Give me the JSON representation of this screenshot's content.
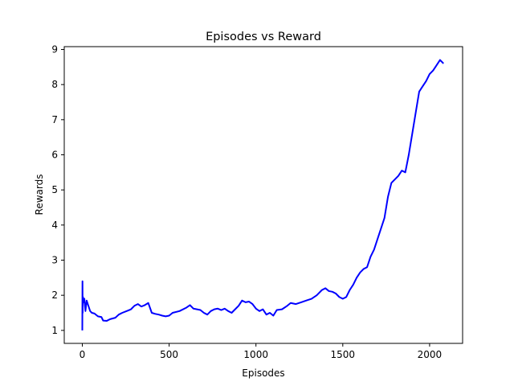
{
  "chart_data": {
    "type": "line",
    "title": "Episodes vs Reward",
    "xlabel": "Episodes",
    "ylabel": "Rewards",
    "xlim": [
      -104,
      2190
    ],
    "ylim": [
      0.63,
      9.08
    ],
    "xticks": [
      0,
      500,
      1000,
      1500,
      2000
    ],
    "xtick_labels": [
      "0",
      "500",
      "1000",
      "1500",
      "2000"
    ],
    "yticks": [
      1,
      2,
      3,
      4,
      5,
      6,
      7,
      8,
      9
    ],
    "ytick_labels": [
      "1",
      "2",
      "3",
      "4",
      "5",
      "6",
      "7",
      "8",
      "9"
    ],
    "grid": false,
    "legend": "none",
    "series": [
      {
        "color": "#0000ff",
        "points": [
          [
            0,
            1.0
          ],
          [
            1,
            2.4
          ],
          [
            2,
            1.5
          ],
          [
            4,
            1.95
          ],
          [
            8,
            1.8
          ],
          [
            12,
            1.9
          ],
          [
            18,
            1.55
          ],
          [
            25,
            1.85
          ],
          [
            35,
            1.7
          ],
          [
            45,
            1.55
          ],
          [
            55,
            1.5
          ],
          [
            70,
            1.48
          ],
          [
            90,
            1.4
          ],
          [
            110,
            1.38
          ],
          [
            120,
            1.28
          ],
          [
            140,
            1.27
          ],
          [
            160,
            1.32
          ],
          [
            190,
            1.36
          ],
          [
            210,
            1.45
          ],
          [
            230,
            1.5
          ],
          [
            260,
            1.56
          ],
          [
            280,
            1.6
          ],
          [
            300,
            1.7
          ],
          [
            320,
            1.75
          ],
          [
            340,
            1.68
          ],
          [
            360,
            1.72
          ],
          [
            380,
            1.78
          ],
          [
            400,
            1.5
          ],
          [
            420,
            1.47
          ],
          [
            440,
            1.45
          ],
          [
            460,
            1.42
          ],
          [
            480,
            1.4
          ],
          [
            500,
            1.42
          ],
          [
            520,
            1.5
          ],
          [
            560,
            1.55
          ],
          [
            600,
            1.65
          ],
          [
            620,
            1.72
          ],
          [
            640,
            1.62
          ],
          [
            660,
            1.6
          ],
          [
            680,
            1.58
          ],
          [
            700,
            1.5
          ],
          [
            720,
            1.45
          ],
          [
            740,
            1.55
          ],
          [
            760,
            1.6
          ],
          [
            780,
            1.62
          ],
          [
            800,
            1.58
          ],
          [
            820,
            1.62
          ],
          [
            840,
            1.55
          ],
          [
            860,
            1.5
          ],
          [
            880,
            1.6
          ],
          [
            900,
            1.7
          ],
          [
            920,
            1.85
          ],
          [
            940,
            1.8
          ],
          [
            960,
            1.82
          ],
          [
            980,
            1.75
          ],
          [
            1000,
            1.62
          ],
          [
            1020,
            1.55
          ],
          [
            1040,
            1.6
          ],
          [
            1060,
            1.45
          ],
          [
            1080,
            1.5
          ],
          [
            1100,
            1.42
          ],
          [
            1120,
            1.58
          ],
          [
            1150,
            1.6
          ],
          [
            1180,
            1.7
          ],
          [
            1200,
            1.78
          ],
          [
            1230,
            1.75
          ],
          [
            1260,
            1.8
          ],
          [
            1290,
            1.85
          ],
          [
            1320,
            1.9
          ],
          [
            1350,
            2.0
          ],
          [
            1380,
            2.15
          ],
          [
            1400,
            2.2
          ],
          [
            1420,
            2.12
          ],
          [
            1440,
            2.1
          ],
          [
            1460,
            2.05
          ],
          [
            1480,
            1.95
          ],
          [
            1500,
            1.9
          ],
          [
            1520,
            1.95
          ],
          [
            1540,
            2.15
          ],
          [
            1560,
            2.3
          ],
          [
            1580,
            2.5
          ],
          [
            1600,
            2.65
          ],
          [
            1620,
            2.75
          ],
          [
            1640,
            2.8
          ],
          [
            1660,
            3.1
          ],
          [
            1680,
            3.3
          ],
          [
            1700,
            3.6
          ],
          [
            1720,
            3.9
          ],
          [
            1740,
            4.2
          ],
          [
            1760,
            4.8
          ],
          [
            1780,
            5.2
          ],
          [
            1800,
            5.3
          ],
          [
            1820,
            5.4
          ],
          [
            1840,
            5.55
          ],
          [
            1860,
            5.5
          ],
          [
            1880,
            6.0
          ],
          [
            1900,
            6.6
          ],
          [
            1920,
            7.2
          ],
          [
            1940,
            7.8
          ],
          [
            1960,
            7.95
          ],
          [
            1980,
            8.1
          ],
          [
            2000,
            8.3
          ],
          [
            2020,
            8.4
          ],
          [
            2040,
            8.55
          ],
          [
            2060,
            8.7
          ],
          [
            2080,
            8.6
          ]
        ]
      }
    ]
  }
}
